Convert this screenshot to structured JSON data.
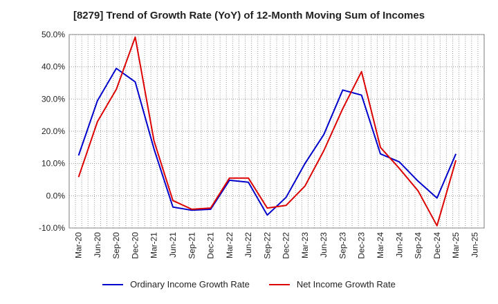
{
  "chart_data": {
    "type": "line",
    "title": "[8279]  Trend of Growth Rate (YoY) of 12-Month Moving Sum of Incomes",
    "xlabel": "",
    "ylabel": "",
    "ylim": [
      -10,
      50
    ],
    "yticks": [
      "50.0%",
      "40.0%",
      "30.0%",
      "20.0%",
      "10.0%",
      "0.0%",
      "-10.0%"
    ],
    "ytick_values": [
      50,
      40,
      30,
      20,
      10,
      0,
      -10
    ],
    "x_tick_labels": [
      "Mar-20",
      "Jun-20",
      "Sep-20",
      "Dec-20",
      "Mar-21",
      "Jun-21",
      "Sep-21",
      "Dec-21",
      "Mar-22",
      "Jun-22",
      "Sep-22",
      "Dec-22",
      "Mar-23",
      "Jun-23",
      "Sep-23",
      "Dec-23",
      "Mar-24",
      "Jun-24",
      "Sep-24",
      "Dec-24",
      "Mar-25",
      "Jun-25"
    ],
    "grid": true,
    "legend_position": "bottom",
    "series": [
      {
        "name": "Ordinary Income Growth Rate",
        "color": "#0000cc",
        "values": [
          12.5,
          29.5,
          39.5,
          35.3,
          14.5,
          -3.5,
          -4.5,
          -4.2,
          4.8,
          4.2,
          -6.0,
          -0.5,
          10.0,
          19.0,
          32.8,
          31.2,
          13.0,
          10.5,
          4.5,
          -0.7,
          13.0,
          null
        ]
      },
      {
        "name": "Net Income Growth Rate",
        "color": "#dd0000",
        "values": [
          5.8,
          23.0,
          33.0,
          49.2,
          17.0,
          -1.5,
          -4.2,
          -3.8,
          5.5,
          5.5,
          -3.8,
          -3.0,
          3.0,
          14.0,
          27.0,
          38.5,
          15.0,
          8.5,
          1.5,
          -9.3,
          11.0,
          null
        ]
      }
    ]
  },
  "legend": {
    "ordinary_label": "Ordinary Income Growth Rate",
    "net_label": "Net Income Growth Rate"
  }
}
